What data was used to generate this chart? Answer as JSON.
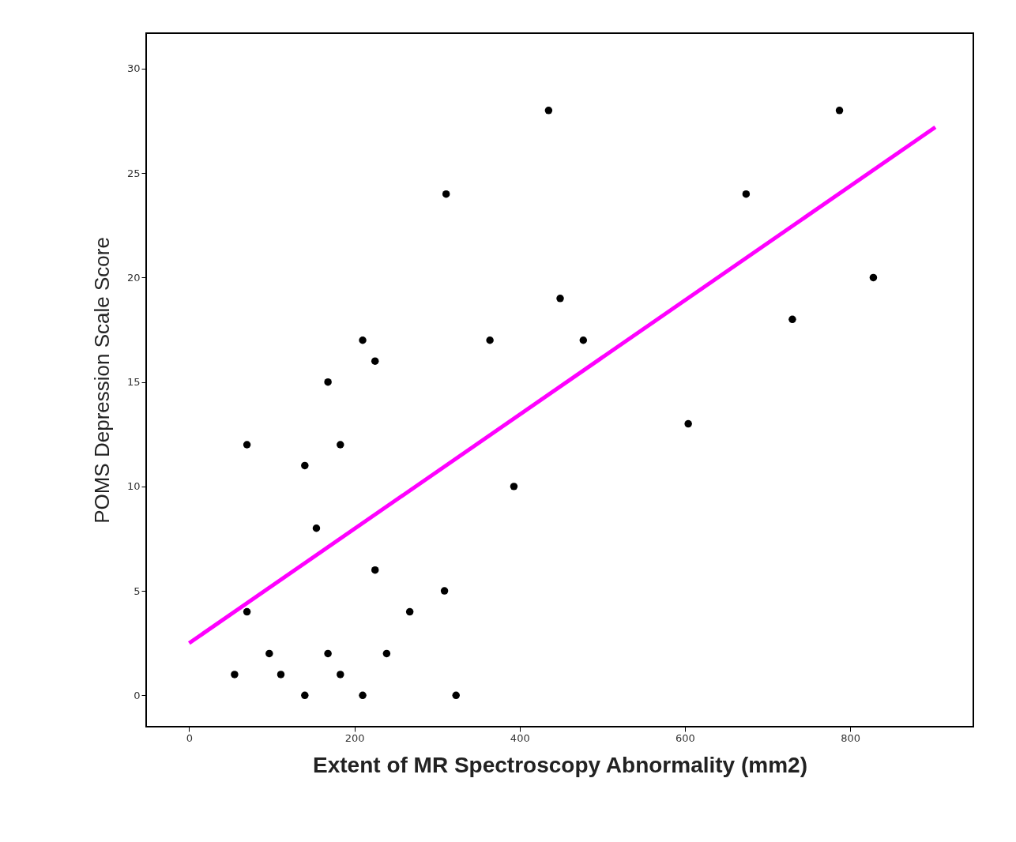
{
  "chart_data": {
    "type": "scatter",
    "xlabel": "Extent of MR Spectroscopy Abnormality (mm2)",
    "ylabel": "POMS Depression Scale Score",
    "xlim": [
      -52,
      949
    ],
    "ylim": [
      -1.5,
      31.7
    ],
    "xticks": [
      0,
      200,
      400,
      600,
      800
    ],
    "yticks": [
      0,
      5,
      10,
      15,
      20,
      25,
      30
    ],
    "series": [
      {
        "marker": "circle",
        "color": "#000000",
        "x": [
          55,
          70,
          70,
          97,
          111,
          140,
          140,
          154,
          168,
          168,
          183,
          183,
          210,
          210,
          225,
          225,
          239,
          267,
          309,
          311,
          323,
          364,
          393,
          435,
          449,
          477,
          604,
          674,
          730,
          787,
          828
        ],
        "values": [
          1,
          12,
          4,
          2,
          1,
          11,
          0,
          8,
          15,
          2,
          12,
          1,
          17,
          0,
          16,
          6,
          2,
          4,
          5,
          24,
          0,
          17,
          10,
          28,
          19,
          17,
          13,
          24,
          18,
          28,
          20
        ]
      },
      {
        "type": "line",
        "color": "#ff00ff",
        "x": [
          0,
          903
        ],
        "values": [
          2.5,
          27.2
        ]
      }
    ]
  }
}
